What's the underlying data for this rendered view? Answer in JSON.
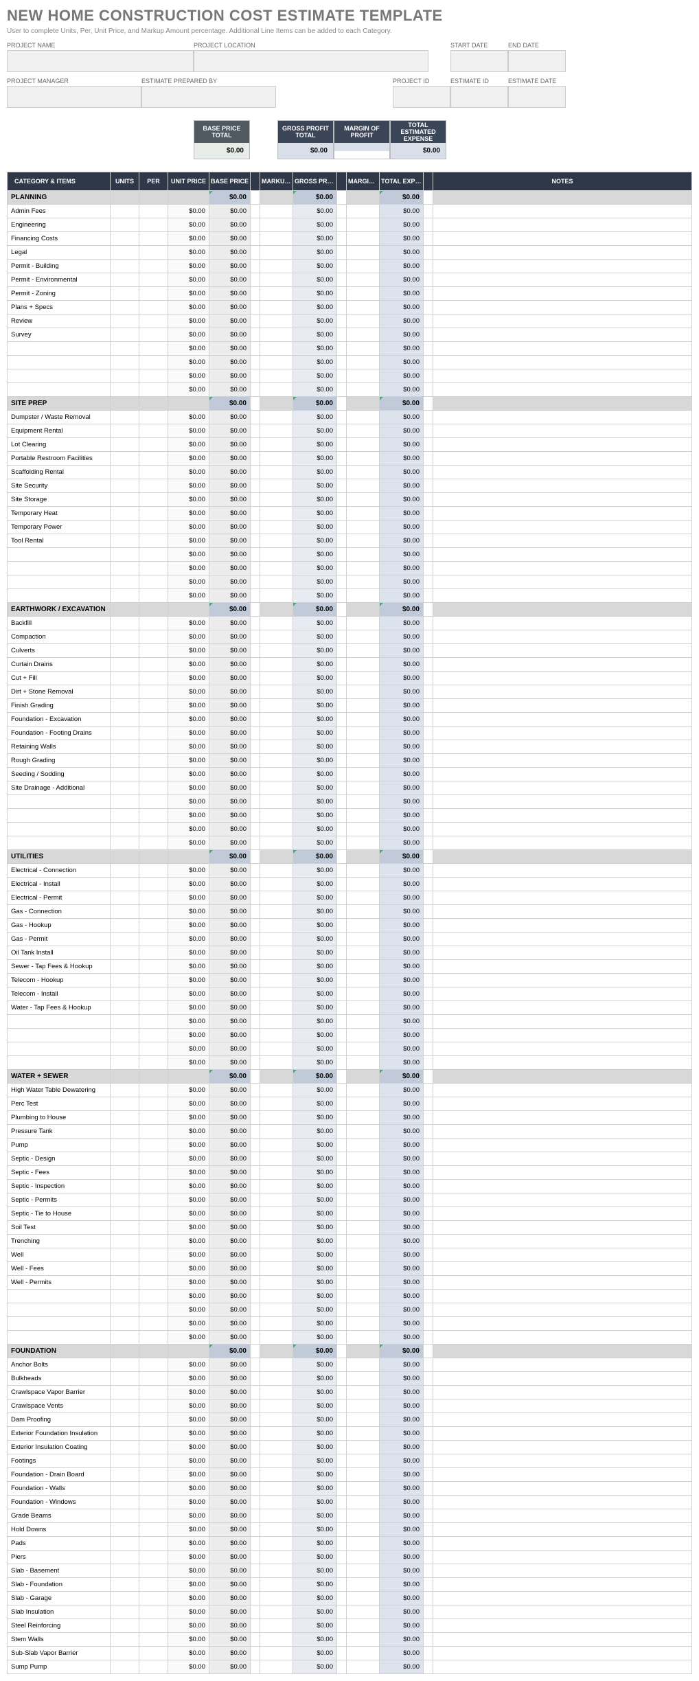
{
  "title": "NEW HOME CONSTRUCTION COST ESTIMATE TEMPLATE",
  "subtitle": "User to complete Units, Per, Unit Price, and Markup Amount percentage.  Additional Line Items can be added to each Category.",
  "fields": {
    "project_name": "PROJECT NAME",
    "project_location": "PROJECT LOCATION",
    "start_date": "START DATE",
    "end_date": "END DATE",
    "project_manager": "PROJECT MANAGER",
    "estimate_prepared_by": "ESTIMATE PREPARED BY",
    "project_id": "PROJECT ID",
    "estimate_id": "ESTIMATE ID",
    "estimate_date": "ESTIMATE DATE"
  },
  "summary": {
    "base_price_total": {
      "label": "BASE PRICE TOTAL",
      "value": "$0.00"
    },
    "gross_profit_total": {
      "label": "GROSS PROFIT TOTAL",
      "value": "$0.00"
    },
    "margin_of_profit": {
      "label": "MARGIN OF PROFIT",
      "value": ""
    },
    "total_estimated_expense": {
      "label": "TOTAL ESTIMATED EXPENSE",
      "value": "$0.00"
    }
  },
  "columns": [
    "CATEGORY & ITEMS",
    "UNITS",
    "PER",
    "UNIT PRICE",
    "BASE PRICE",
    "MARKUP AMOUNT",
    "GROSS PROFIT",
    "MARGIN OF PROFIT",
    "TOTAL EXPENSE",
    "NOTES"
  ],
  "zero": "$0.00",
  "categories": [
    {
      "name": "PLANNING",
      "items": [
        "Admin Fees",
        "Engineering",
        "Financing Costs",
        "Legal",
        "Permit - Building",
        "Permit - Environmental",
        "Permit - Zoning",
        "Plans + Specs",
        "Review",
        "Survey",
        "",
        "",
        "",
        ""
      ]
    },
    {
      "name": "SITE PREP",
      "items": [
        "Dumpster / Waste Removal",
        "Equipment Rental",
        "Lot Clearing",
        "Portable Restroom Facilities",
        "Scaffolding Rental",
        "Site Security",
        "Site Storage",
        "Temporary Heat",
        "Temporary Power",
        "Tool Rental",
        "",
        "",
        "",
        ""
      ]
    },
    {
      "name": "EARTHWORK / EXCAVATION",
      "items": [
        "Backfill",
        "Compaction",
        "Culverts",
        "Curtain Drains",
        "Cut + Fill",
        "Dirt + Stone Removal",
        "Finish Grading",
        "Foundation - Excavation",
        "Foundation - Footing Drains",
        "Retaining Walls",
        "Rough Grading",
        "Seeding / Sodding",
        "Site Drainage - Additional",
        "",
        "",
        "",
        ""
      ]
    },
    {
      "name": "UTILITIES",
      "items": [
        "Electrical - Connection",
        "Electrical - Install",
        "Electrical - Permit",
        "Gas - Connection",
        "Gas - Hookup",
        "Gas - Permit",
        "Oil Tank Install",
        "Sewer - Tap Fees & Hookup",
        "Telecom - Hookup",
        "Telecom - Install",
        "Water - Tap Fees & Hookup",
        "",
        "",
        "",
        ""
      ]
    },
    {
      "name": "WATER + SEWER",
      "items": [
        "High Water Table Dewatering",
        "Perc Test",
        "Plumbing to House",
        "Pressure Tank",
        "Pump",
        "Septic - Design",
        "Septic - Fees",
        "Septic - Inspection",
        "Septic - Permits",
        "Septic - Tie to House",
        "Soil Test",
        "Trenching",
        "Well",
        "Well - Fees",
        "Well - Permits",
        "",
        "",
        "",
        ""
      ]
    },
    {
      "name": "FOUNDATION",
      "items": [
        "Anchor Bolts",
        "Bulkheads",
        "Crawlspace Vapor Barrier",
        "Crawlspace Vents",
        "Dam Proofing",
        "Exterior Foundation Insulation",
        "Exterior Insulation Coating",
        "Footings",
        "Foundation - Drain Board",
        "Foundation - Walls",
        "Foundation - Windows",
        "Grade Beams",
        "Hold Downs",
        "Pads",
        "Piers",
        "Slab - Basement",
        "Slab - Foundation",
        "Slab - Garage",
        "Slab Insulation",
        "Steel Reinforcing",
        "Stem Walls",
        "Sub-Slab Vapor Barrier",
        "Sump Pump"
      ]
    }
  ],
  "colors": {
    "title": "#777777",
    "header_bg": "#2f3848",
    "cat_bg": "#d8d8d8",
    "cat_calc_bg": "#c0cad8",
    "baseprice_bg": "#ececec",
    "grossprofit_bg": "#e8ecf2",
    "totalexpense_bg": "#dde3ec",
    "summary_gray_bg": "#505860",
    "summary_blue_bg": "#3b4558"
  }
}
